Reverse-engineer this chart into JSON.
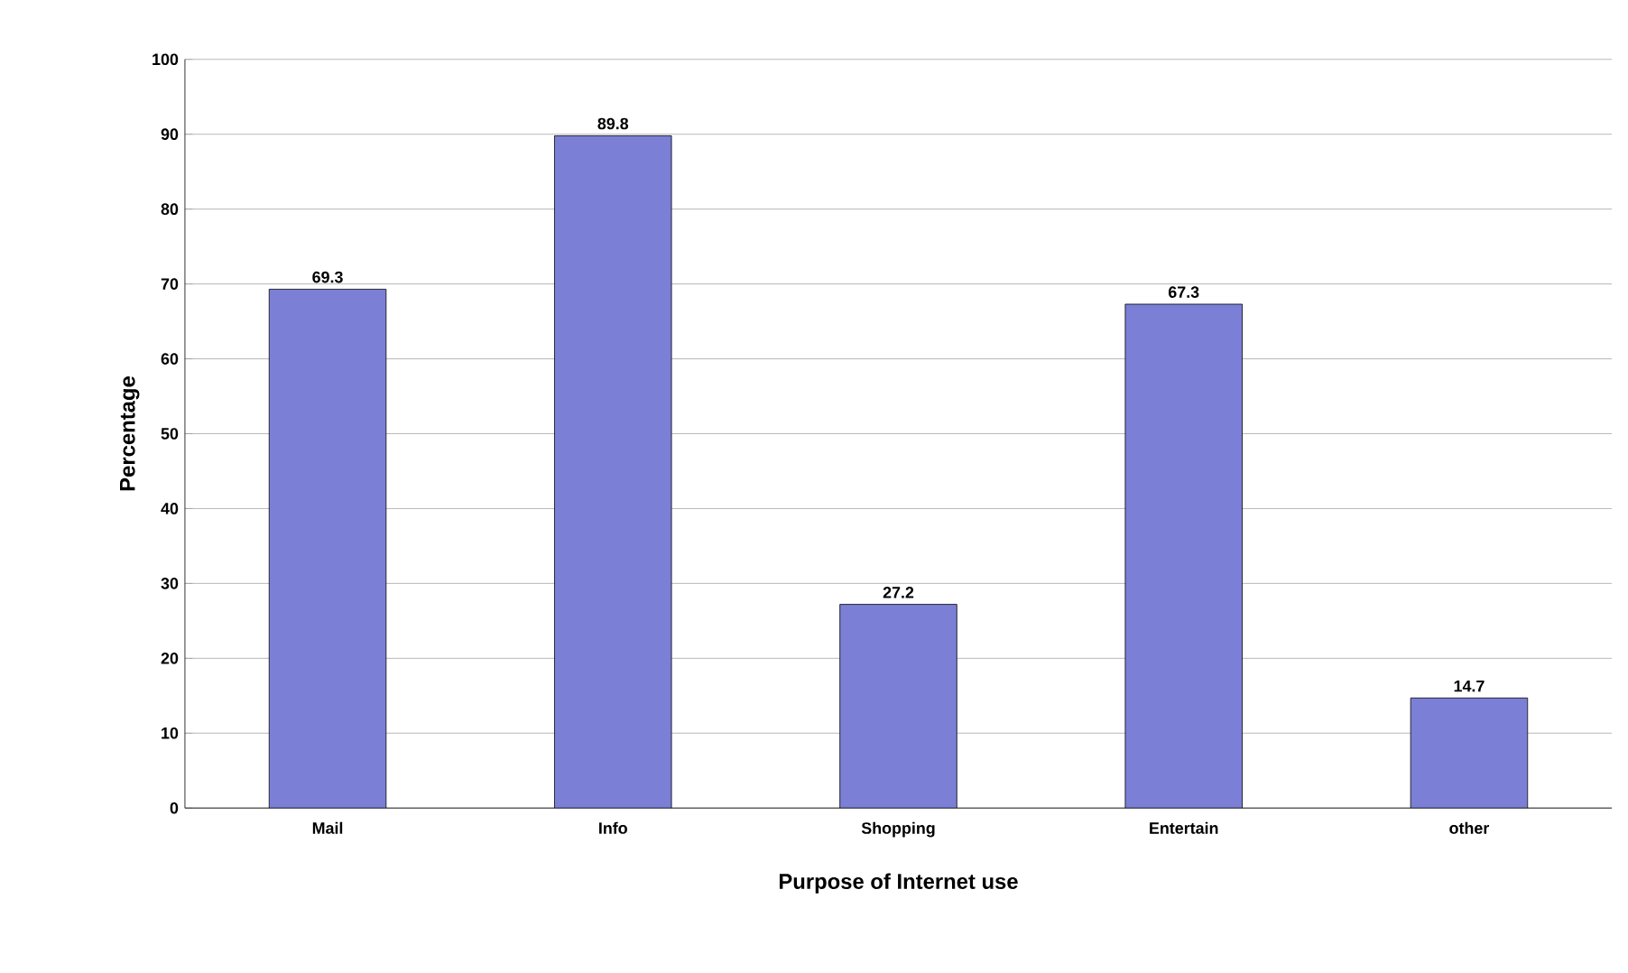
{
  "chart_data": {
    "type": "bar",
    "xlabel": "Purpose of Internet use",
    "ylabel": "Percentage",
    "categories": [
      "Mail",
      "Info",
      "Shopping",
      "Entertain",
      "other"
    ],
    "values": [
      69.3,
      89.8,
      27.2,
      67.3,
      14.7
    ],
    "color": "#7b7fd6",
    "ylim": [
      0,
      100
    ],
    "yticks": [
      0,
      10,
      20,
      30,
      40,
      50,
      60,
      70,
      80,
      90,
      100
    ],
    "grid": "y",
    "data_labels": true
  }
}
